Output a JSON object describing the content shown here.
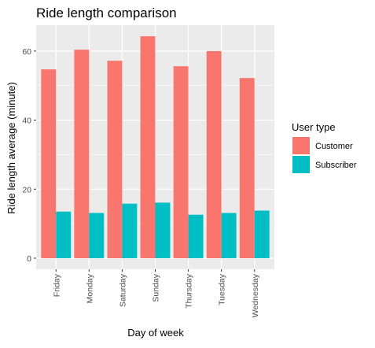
{
  "chart_data": {
    "type": "bar",
    "title": "Ride length comparison",
    "xlabel": "Day of week",
    "ylabel": "Ride length average (minute)",
    "categories": [
      "Friday",
      "Monday",
      "Saturday",
      "Sunday",
      "Thursday",
      "Tuesday",
      "Wednesday"
    ],
    "series": [
      {
        "name": "Customer",
        "color": "#F8766D",
        "values": [
          54.7,
          60.4,
          57.2,
          64.3,
          55.6,
          60.0,
          52.2
        ]
      },
      {
        "name": "Subscriber",
        "color": "#00BFC4",
        "values": [
          13.5,
          13.1,
          15.8,
          16.1,
          12.6,
          13.1,
          13.8
        ]
      }
    ],
    "ylim": [
      -3.2,
      67.5
    ],
    "yticks": [
      0,
      20,
      40,
      60
    ],
    "grid": true,
    "legend": {
      "title": "User type",
      "position": "right"
    },
    "panel_color": "#EBEBEB"
  }
}
